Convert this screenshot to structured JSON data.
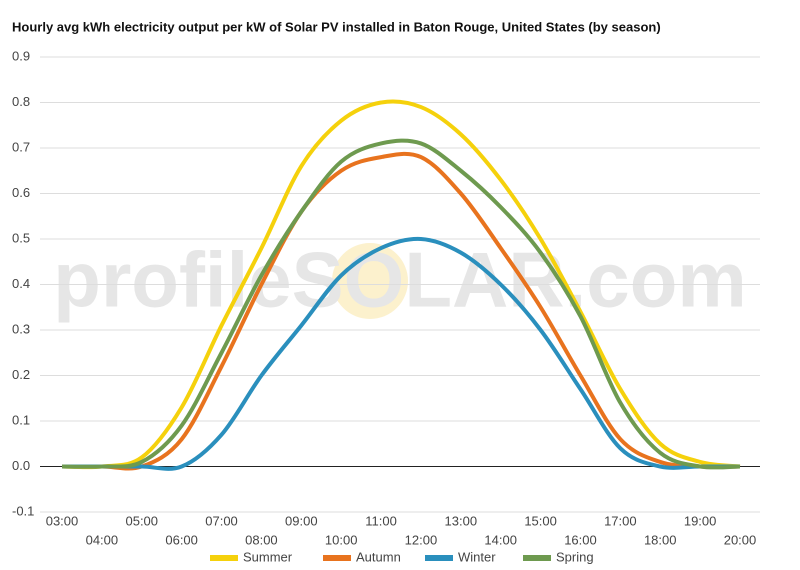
{
  "chart_data": {
    "type": "line",
    "title": "Hourly avg kWh electricity output per kW of Solar PV installed in Baton Rouge, United States (by season)",
    "watermark": "profileSOLAR.com",
    "categories": [
      "03:00",
      "04:00",
      "05:00",
      "06:00",
      "07:00",
      "08:00",
      "09:00",
      "10:00",
      "11:00",
      "12:00",
      "13:00",
      "14:00",
      "15:00",
      "16:00",
      "17:00",
      "18:00",
      "19:00",
      "20:00"
    ],
    "series": [
      {
        "name": "Summer",
        "color": "#f5d10c",
        "values": [
          0,
          0,
          0.02,
          0.13,
          0.31,
          0.48,
          0.66,
          0.76,
          0.8,
          0.79,
          0.73,
          0.63,
          0.5,
          0.34,
          0.17,
          0.05,
          0.01,
          0
        ]
      },
      {
        "name": "Autumn",
        "color": "#e8731e",
        "values": [
          0,
          0,
          0,
          0.06,
          0.22,
          0.4,
          0.56,
          0.65,
          0.68,
          0.68,
          0.6,
          0.48,
          0.35,
          0.2,
          0.06,
          0.01,
          0,
          0
        ]
      },
      {
        "name": "Winter",
        "color": "#2a8fbd",
        "values": [
          0,
          0,
          0,
          0,
          0.07,
          0.2,
          0.31,
          0.42,
          0.48,
          0.5,
          0.47,
          0.4,
          0.3,
          0.17,
          0.04,
          0,
          0,
          0
        ]
      },
      {
        "name": "Spring",
        "color": "#6e9a4f",
        "values": [
          0,
          0,
          0.01,
          0.09,
          0.25,
          0.42,
          0.56,
          0.67,
          0.71,
          0.71,
          0.65,
          0.57,
          0.47,
          0.33,
          0.14,
          0.03,
          0,
          0
        ]
      }
    ],
    "ylim": [
      -0.1,
      0.9
    ],
    "yticks": [
      -0.1,
      {
        "value": 0,
        "label": "0.0"
      },
      0.1,
      0.2,
      0.3,
      0.4,
      0.5,
      0.6,
      0.7,
      0.8,
      0.9
    ],
    "grid": true,
    "legend": "bottom"
  }
}
